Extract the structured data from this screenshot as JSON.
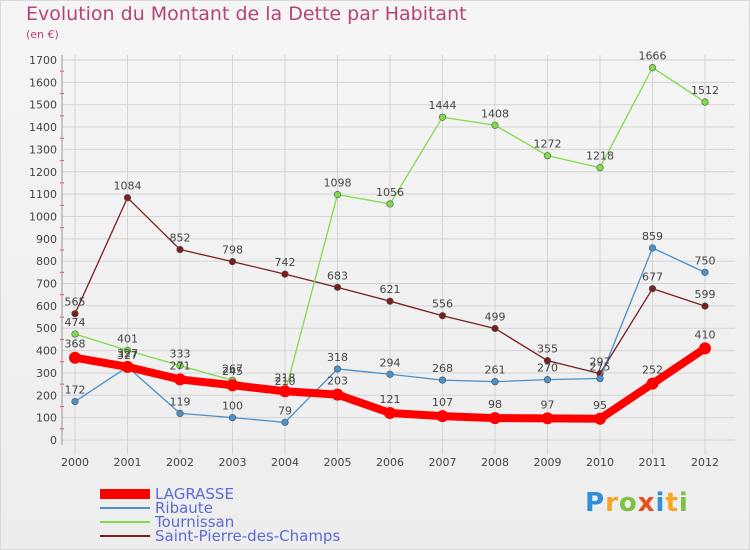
{
  "chart_data": {
    "type": "line",
    "title": "Evolution du Montant de la Dette par Habitant",
    "subtitle": "(en €)",
    "categories": [
      "2000",
      "2001",
      "2002",
      "2003",
      "2004",
      "2005",
      "2006",
      "2007",
      "2008",
      "2009",
      "2010",
      "2011",
      "2012"
    ],
    "ylim": [
      0,
      1700
    ],
    "yticks": [
      0,
      100,
      200,
      300,
      400,
      500,
      600,
      700,
      800,
      900,
      1000,
      1100,
      1200,
      1300,
      1400,
      1500,
      1600,
      1700
    ],
    "grid": true,
    "legend_position": "bottom-left",
    "series": [
      {
        "name": "LAGRASSE",
        "color": "#ff0000",
        "values": [
          368,
          327,
          271,
          245,
          218,
          203,
          121,
          107,
          98,
          97,
          95,
          252,
          410
        ]
      },
      {
        "name": "Ribaute",
        "color": "#4a90c9",
        "values": [
          172,
          327,
          119,
          100,
          79,
          318,
          294,
          268,
          261,
          270,
          275,
          859,
          750
        ]
      },
      {
        "name": "Tournissan",
        "color": "#7fdb4a",
        "values": [
          474,
          401,
          333,
          267,
          210,
          1098,
          1056,
          1444,
          1408,
          1272,
          1218,
          1666,
          1512
        ]
      },
      {
        "name": "Saint-Pierre-des-Champs",
        "color": "#7a1f1f",
        "values": [
          565,
          1084,
          852,
          798,
          742,
          683,
          621,
          556,
          499,
          355,
          297,
          677,
          599
        ]
      }
    ]
  },
  "logo": {
    "letters": [
      "P",
      "r",
      "o",
      "x",
      "i",
      "t",
      "i"
    ],
    "colors": [
      "#2f8fd8",
      "#f5a623",
      "#7cc242",
      "#e94e1b",
      "#2f8fd8",
      "#f5a623",
      "#7cc242"
    ]
  }
}
